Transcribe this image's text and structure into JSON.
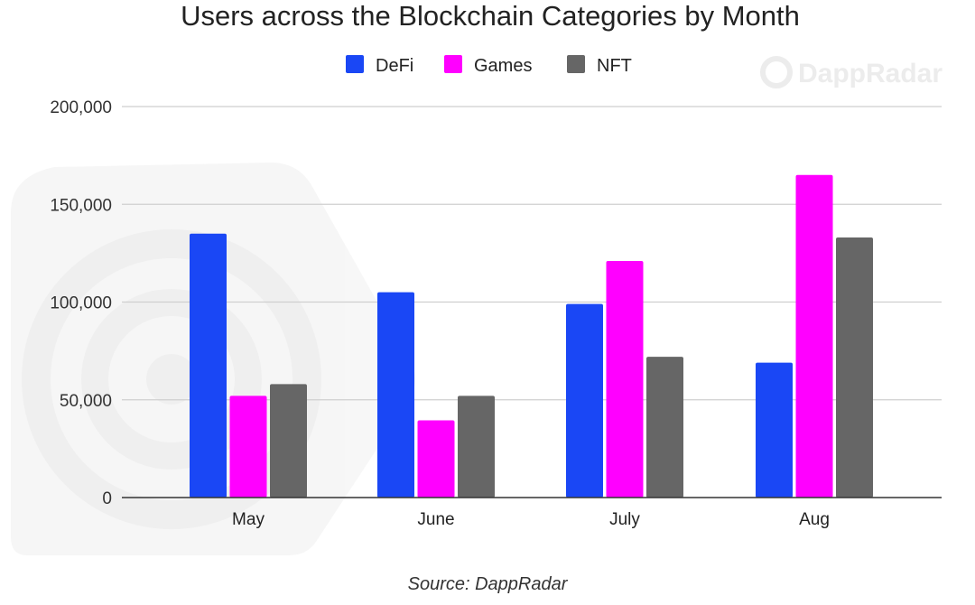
{
  "watermark": {
    "brand": "DappRadar"
  },
  "source": "Source: DappRadar",
  "chart_data": {
    "type": "bar",
    "title": "Users across the Blockchain Categories by Month",
    "categories": [
      "May",
      "June",
      "July",
      "Aug"
    ],
    "series": [
      {
        "name": "DeFi",
        "color": "#1a47f5",
        "values": [
          135000,
          105000,
          99000,
          69000
        ]
      },
      {
        "name": "Games",
        "color": "#ff00ff",
        "values": [
          52000,
          39500,
          121000,
          165000
        ]
      },
      {
        "name": "NFT",
        "color": "#666666",
        "values": [
          58000,
          52000,
          72000,
          133000
        ]
      }
    ],
    "ylim": [
      0,
      200000
    ],
    "yticks": [
      0,
      50000,
      100000,
      150000,
      200000
    ],
    "ytick_labels": [
      "0",
      "50,000",
      "100,000",
      "150,000",
      "200,000"
    ],
    "grid": true,
    "legend_position": "top"
  }
}
